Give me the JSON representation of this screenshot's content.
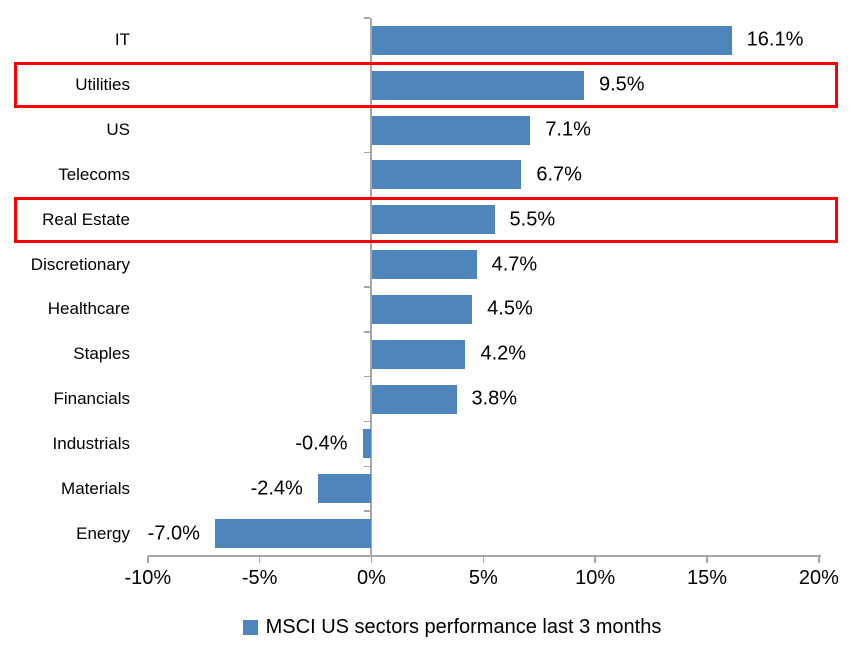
{
  "chart_data": {
    "type": "bar",
    "orientation": "horizontal",
    "categories": [
      "IT",
      "Utilities",
      "US",
      "Telecoms",
      "Real Estate",
      "Discretionary",
      "Healthcare",
      "Staples",
      "Financials",
      "Industrials",
      "Materials",
      "Energy"
    ],
    "values": [
      16.1,
      9.5,
      7.1,
      6.7,
      5.5,
      4.7,
      4.5,
      4.2,
      3.8,
      -0.4,
      -2.4,
      -7.0
    ],
    "value_labels": [
      "16.1%",
      "9.5%",
      "7.1%",
      "6.7%",
      "5.5%",
      "4.7%",
      "4.5%",
      "4.2%",
      "3.8%",
      "-0.4%",
      "-2.4%",
      "-7.0%"
    ],
    "xlim": [
      -10,
      20
    ],
    "x_ticks": [
      -10,
      -5,
      0,
      5,
      10,
      15,
      20
    ],
    "x_tick_labels": [
      "-10%",
      "-5%",
      "0%",
      "5%",
      "10%",
      "15%",
      "20%"
    ],
    "title": "",
    "xlabel": "",
    "ylabel": "",
    "grid": false,
    "legend_position": "bottom",
    "legend_label": "MSCI US sectors performance last 3 months",
    "highlighted_categories": [
      "Utilities",
      "Real Estate"
    ],
    "colors": {
      "bar": "#4E86BC",
      "axis": "#A6A6A6",
      "highlight_box": "#FF0000",
      "text": "#000000"
    }
  }
}
